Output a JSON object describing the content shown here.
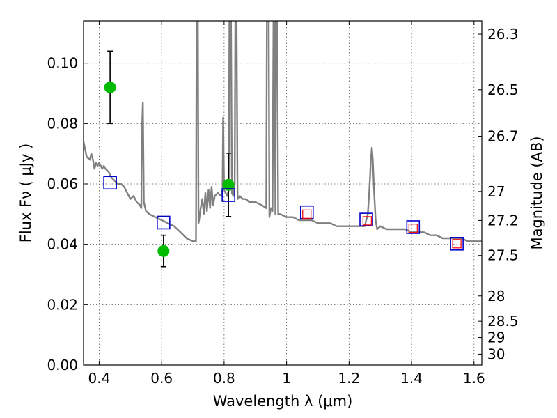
{
  "chart_data": {
    "type": "line",
    "xlabel": "Wavelength  λ (μm)",
    "ylabel": "Flux  Fν  ( μJy )",
    "y2label": "Magnitude (AB)",
    "xlim": [
      0.35,
      1.625
    ],
    "ylim": [
      0.0,
      0.114
    ],
    "grid": true,
    "x_ticks": [
      0.4,
      0.6,
      0.8,
      1.0,
      1.2,
      1.4,
      1.6
    ],
    "x_tick_labels": [
      "0.4",
      "0.6",
      "0.8",
      "1",
      "1.2",
      "1.4",
      "1.6"
    ],
    "y_ticks": [
      0.0,
      0.02,
      0.04,
      0.06,
      0.08,
      0.1
    ],
    "y_tick_labels": [
      "0.00",
      "0.02",
      "0.04",
      "0.06",
      "0.08",
      "0.10"
    ],
    "mag_ticks": [
      {
        "label": "26.3",
        "flux": 0.1096
      },
      {
        "label": "26.5",
        "flux": 0.0912
      },
      {
        "label": "26.7",
        "flux": 0.0758
      },
      {
        "label": "27",
        "flux": 0.0575
      },
      {
        "label": "27.2",
        "flux": 0.0479
      },
      {
        "label": "27.5",
        "flux": 0.0363
      },
      {
        "label": "28",
        "flux": 0.0229
      },
      {
        "label": "28.5",
        "flux": 0.0145
      },
      {
        "label": "29",
        "flux": 0.0091
      },
      {
        "label": "30",
        "flux": 0.0036
      }
    ],
    "series": [
      {
        "name": "model spectrum",
        "color": "#808080",
        "points": [
          [
            0.35,
            0.074
          ],
          [
            0.36,
            0.069
          ],
          [
            0.37,
            0.068
          ],
          [
            0.375,
            0.07
          ],
          [
            0.38,
            0.068
          ],
          [
            0.385,
            0.065
          ],
          [
            0.39,
            0.067
          ],
          [
            0.395,
            0.066
          ],
          [
            0.4,
            0.067
          ],
          [
            0.405,
            0.066
          ],
          [
            0.41,
            0.065
          ],
          [
            0.415,
            0.066
          ],
          [
            0.42,
            0.065
          ],
          [
            0.43,
            0.064
          ],
          [
            0.44,
            0.062
          ],
          [
            0.45,
            0.061
          ],
          [
            0.46,
            0.06
          ],
          [
            0.47,
            0.06
          ],
          [
            0.48,
            0.059
          ],
          [
            0.49,
            0.057
          ],
          [
            0.5,
            0.055
          ],
          [
            0.51,
            0.056
          ],
          [
            0.52,
            0.054
          ],
          [
            0.53,
            0.053
          ],
          [
            0.535,
            0.052
          ],
          [
            0.537,
            0.078
          ],
          [
            0.54,
            0.087
          ],
          [
            0.543,
            0.054
          ],
          [
            0.55,
            0.051
          ],
          [
            0.56,
            0.05
          ],
          [
            0.58,
            0.049
          ],
          [
            0.6,
            0.048
          ],
          [
            0.62,
            0.047
          ],
          [
            0.64,
            0.046
          ],
          [
            0.66,
            0.044
          ],
          [
            0.68,
            0.042
          ],
          [
            0.7,
            0.041
          ],
          [
            0.71,
            0.041
          ],
          [
            0.712,
            0.114
          ],
          [
            0.716,
            0.114
          ],
          [
            0.718,
            0.047
          ],
          [
            0.72,
            0.048
          ],
          [
            0.725,
            0.052
          ],
          [
            0.73,
            0.055
          ],
          [
            0.735,
            0.05
          ],
          [
            0.74,
            0.057
          ],
          [
            0.745,
            0.051
          ],
          [
            0.75,
            0.058
          ],
          [
            0.755,
            0.052
          ],
          [
            0.76,
            0.059
          ],
          [
            0.765,
            0.053
          ],
          [
            0.77,
            0.056
          ],
          [
            0.78,
            0.057
          ],
          [
            0.79,
            0.056
          ],
          [
            0.795,
            0.058
          ],
          [
            0.797,
            0.082
          ],
          [
            0.8,
            0.058
          ],
          [
            0.81,
            0.056
          ],
          [
            0.815,
            0.058
          ],
          [
            0.817,
            0.114
          ],
          [
            0.822,
            0.114
          ],
          [
            0.825,
            0.057
          ],
          [
            0.83,
            0.056
          ],
          [
            0.834,
            0.06
          ],
          [
            0.836,
            0.114
          ],
          [
            0.84,
            0.114
          ],
          [
            0.843,
            0.055
          ],
          [
            0.85,
            0.056
          ],
          [
            0.86,
            0.055
          ],
          [
            0.87,
            0.055
          ],
          [
            0.88,
            0.054
          ],
          [
            0.9,
            0.054
          ],
          [
            0.92,
            0.053
          ],
          [
            0.935,
            0.052
          ],
          [
            0.937,
            0.114
          ],
          [
            0.943,
            0.114
          ],
          [
            0.945,
            0.049
          ],
          [
            0.95,
            0.052
          ],
          [
            0.955,
            0.051
          ],
          [
            0.958,
            0.114
          ],
          [
            0.962,
            0.114
          ],
          [
            0.964,
            0.05
          ],
          [
            0.966,
            0.114
          ],
          [
            0.97,
            0.114
          ],
          [
            0.973,
            0.05
          ],
          [
            0.98,
            0.05
          ],
          [
            1.0,
            0.049
          ],
          [
            1.02,
            0.049
          ],
          [
            1.04,
            0.048
          ],
          [
            1.06,
            0.048
          ],
          [
            1.08,
            0.048
          ],
          [
            1.1,
            0.047
          ],
          [
            1.12,
            0.047
          ],
          [
            1.14,
            0.047
          ],
          [
            1.16,
            0.046
          ],
          [
            1.18,
            0.046
          ],
          [
            1.2,
            0.046
          ],
          [
            1.22,
            0.046
          ],
          [
            1.24,
            0.046
          ],
          [
            1.25,
            0.046
          ],
          [
            1.26,
            0.05
          ],
          [
            1.265,
            0.058
          ],
          [
            1.27,
            0.068
          ],
          [
            1.273,
            0.072
          ],
          [
            1.276,
            0.068
          ],
          [
            1.28,
            0.058
          ],
          [
            1.285,
            0.048
          ],
          [
            1.29,
            0.045
          ],
          [
            1.3,
            0.046
          ],
          [
            1.32,
            0.045
          ],
          [
            1.34,
            0.045
          ],
          [
            1.36,
            0.045
          ],
          [
            1.38,
            0.045
          ],
          [
            1.4,
            0.044
          ],
          [
            1.42,
            0.044
          ],
          [
            1.44,
            0.044
          ],
          [
            1.46,
            0.043
          ],
          [
            1.48,
            0.043
          ],
          [
            1.5,
            0.042
          ],
          [
            1.52,
            0.042
          ],
          [
            1.54,
            0.042
          ],
          [
            1.56,
            0.042
          ],
          [
            1.58,
            0.041
          ],
          [
            1.6,
            0.041
          ],
          [
            1.625,
            0.041
          ]
        ]
      },
      {
        "name": "observed photometry",
        "color": "#00bb00",
        "points": [
          {
            "x": 0.435,
            "y": 0.092,
            "err": 0.012
          },
          {
            "x": 0.606,
            "y": 0.0378,
            "err": 0.0052
          },
          {
            "x": 0.814,
            "y": 0.0597,
            "err": 0.0105
          }
        ]
      },
      {
        "name": "model photometry",
        "color": "#0000cc",
        "points": [
          {
            "x": 0.435,
            "y": 0.0604
          },
          {
            "x": 0.606,
            "y": 0.0472
          },
          {
            "x": 0.814,
            "y": 0.0563
          },
          {
            "x": 1.065,
            "y": 0.0506
          },
          {
            "x": 1.255,
            "y": 0.0482
          },
          {
            "x": 1.405,
            "y": 0.0457
          },
          {
            "x": 1.545,
            "y": 0.0402
          }
        ]
      },
      {
        "name": "upper limits",
        "color": "#ff0000",
        "points": [
          {
            "x": 1.065,
            "y": 0.05
          },
          {
            "x": 1.258,
            "y": 0.0478
          },
          {
            "x": 1.405,
            "y": 0.0453
          },
          {
            "x": 1.545,
            "y": 0.0402
          }
        ]
      }
    ]
  }
}
